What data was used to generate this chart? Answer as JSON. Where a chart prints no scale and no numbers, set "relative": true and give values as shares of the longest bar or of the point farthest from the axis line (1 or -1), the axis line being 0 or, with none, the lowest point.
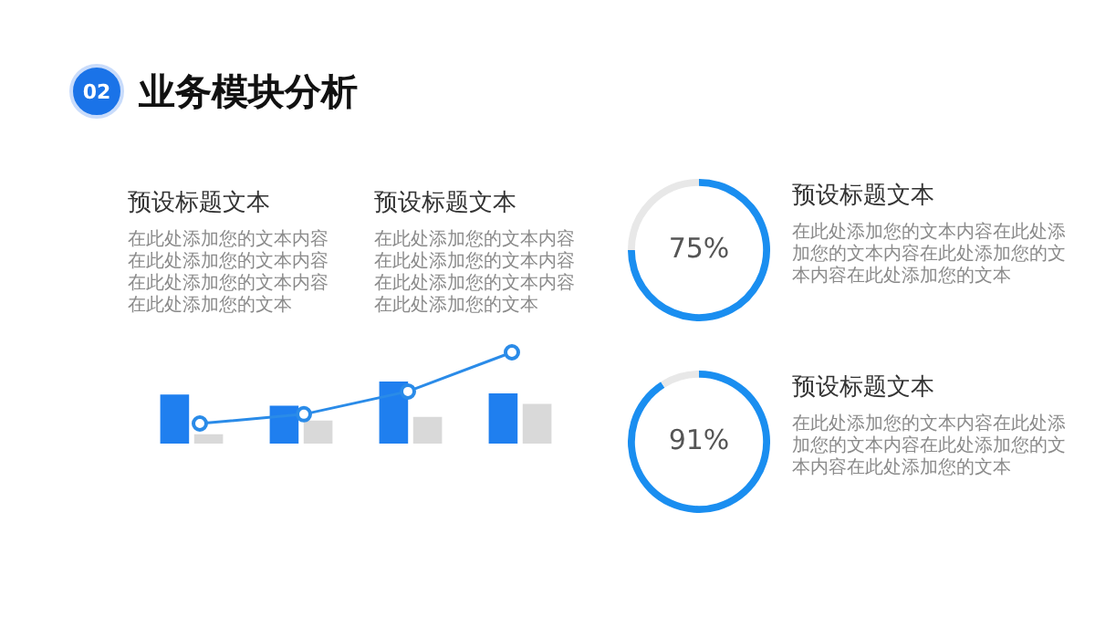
{
  "chart_data": [
    {
      "type": "other",
      "title": "业务模块分析",
      "annotations": [
        "02"
      ]
    },
    {
      "type": "other",
      "title": "预设标题文本",
      "annotations": [
        "在此处添加您的文本内容在此处添加您的文本内容在此处添加您的文本内容在此处添加您的文本"
      ]
    },
    {
      "type": "other",
      "title": "预设标题文本",
      "annotations": [
        "在此处添加您的文本内容在此处添加您的文本内容在此处添加您的文本内容在此处添加您的文本"
      ]
    },
    {
      "type": "bar",
      "relative": true,
      "categories": [
        null,
        null,
        null,
        null
      ],
      "series": [
        {
          "color": "#1f7fef",
          "values": [
            0.79,
            0.61,
            1,
            0.81
          ]
        },
        {
          "color": "#d9d9d9",
          "values": [
            0.15,
            0.37,
            0.43,
            0.64
          ]
        }
      ]
    },
    {
      "type": "line",
      "relative": true,
      "categories": [
        null,
        null,
        null,
        null
      ],
      "marker": "circle",
      "series": [
        {
          "color": "#2a8be8",
          "values": [
            0,
            0.13,
            0.45,
            1
          ]
        }
      ]
    },
    {
      "type": "donut",
      "title": "预设标题文本",
      "annotations": [
        "在此处添加您的文本内容在此处添加您的文本内容在此处添加您的文本内容在此处添加您的文本"
      ],
      "categories": [
        null,
        null
      ],
      "values": [
        75,
        25
      ],
      "colors": [
        "#1a8ef0",
        "#e8e8e8"
      ],
      "value_labels": [
        "75%",
        null
      ]
    },
    {
      "type": "donut",
      "title": "预设标题文本",
      "annotations": [
        "在此处添加您的文本内容在此处添加您的文本内容在此处添加您的文本内容在此处添加您的文本"
      ],
      "categories": [
        null,
        null
      ],
      "values": [
        91,
        9
      ],
      "colors": [
        "#1a8ef0",
        "#e8e8e8"
      ],
      "value_labels": [
        "91%",
        null
      ]
    }
  ]
}
